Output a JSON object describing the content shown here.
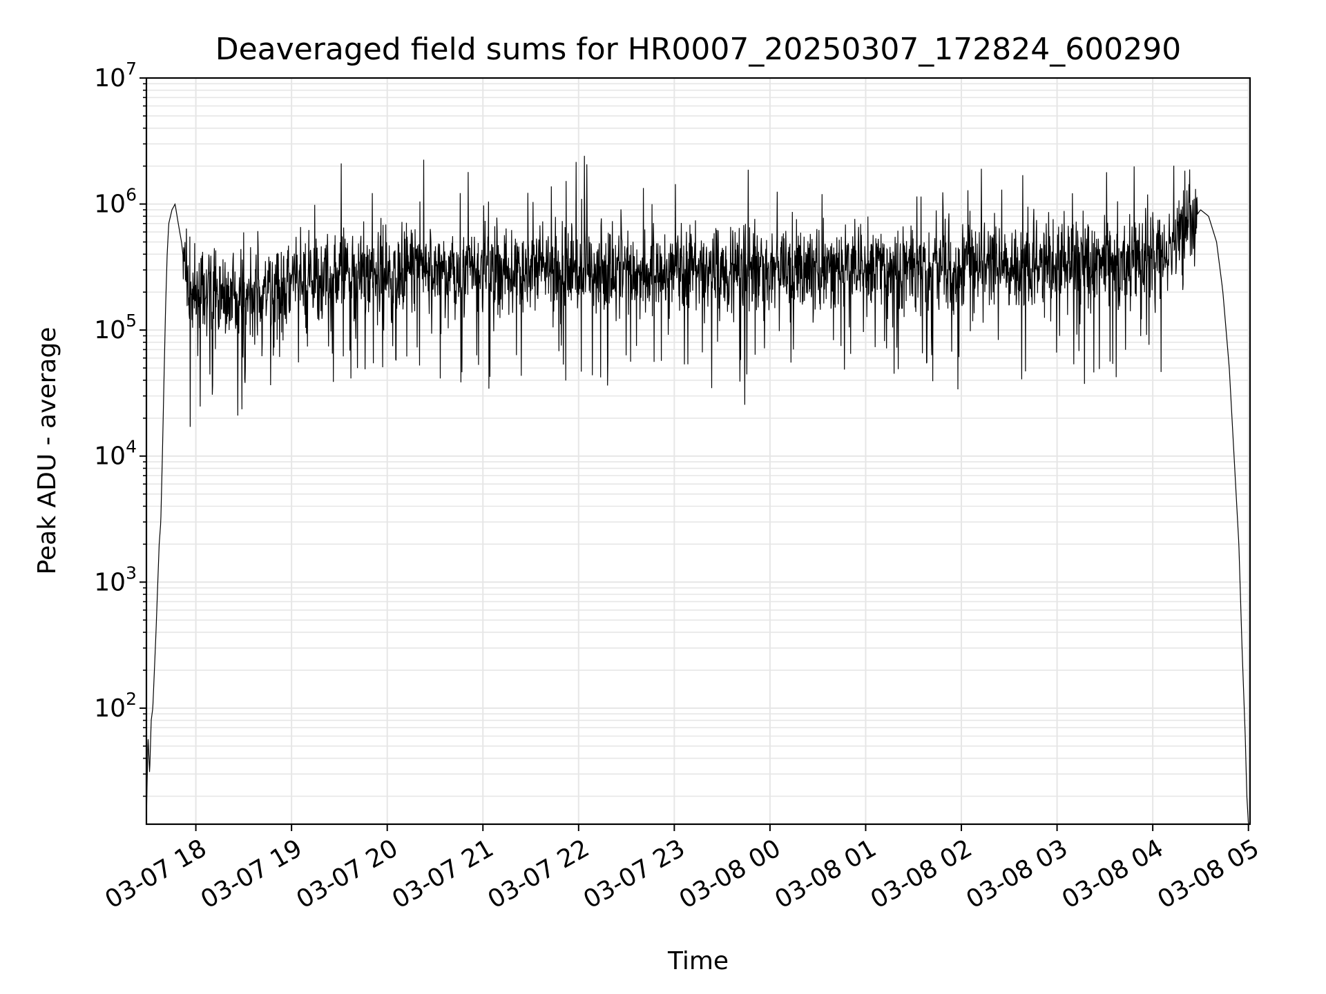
{
  "chart_data": {
    "type": "line",
    "title": "Deaveraged field sums for HR0007_20250307_172824_600290",
    "xlabel": "Time",
    "ylabel": "Peak ADU - average",
    "yscale": "log",
    "ylim": [
      12,
      10000000
    ],
    "xlim": [
      "2025-03-07 17:29",
      "2025-03-08 05:01"
    ],
    "grid": true,
    "line_color": "#000000",
    "grid_color": "#e6e6e6",
    "x_ticks": [
      {
        "value": "2025-03-07 18:00",
        "label": "03-07 18"
      },
      {
        "value": "2025-03-07 19:00",
        "label": "03-07 19"
      },
      {
        "value": "2025-03-07 20:00",
        "label": "03-07 20"
      },
      {
        "value": "2025-03-07 21:00",
        "label": "03-07 21"
      },
      {
        "value": "2025-03-07 22:00",
        "label": "03-07 22"
      },
      {
        "value": "2025-03-07 23:00",
        "label": "03-07 23"
      },
      {
        "value": "2025-03-08 00:00",
        "label": "03-08 00"
      },
      {
        "value": "2025-03-08 01:00",
        "label": "03-08 01"
      },
      {
        "value": "2025-03-08 02:00",
        "label": "03-08 02"
      },
      {
        "value": "2025-03-08 03:00",
        "label": "03-08 03"
      },
      {
        "value": "2025-03-08 04:00",
        "label": "03-08 04"
      },
      {
        "value": "2025-03-08 05:00",
        "label": "03-08 05"
      }
    ],
    "y_ticks": [
      {
        "value": 100,
        "base": "10",
        "exp": "2"
      },
      {
        "value": 1000,
        "base": "10",
        "exp": "3"
      },
      {
        "value": 10000,
        "base": "10",
        "exp": "4"
      },
      {
        "value": 100000,
        "base": "10",
        "exp": "5"
      },
      {
        "value": 1000000,
        "base": "10",
        "exp": "6"
      },
      {
        "value": 10000000,
        "base": "10",
        "exp": "7"
      }
    ],
    "series": [
      {
        "x": [
          "2025-03-07 17:29",
          "2025-03-07 17:30",
          "2025-03-07 17:31",
          "2025-03-07 17:32",
          "2025-03-07 17:33",
          "2025-03-07 17:34",
          "2025-03-07 17:35",
          "2025-03-07 17:36",
          "2025-03-07 17:37",
          "2025-03-07 17:38",
          "2025-03-07 17:39",
          "2025-03-07 17:40",
          "2025-03-07 17:41",
          "2025-03-07 17:42",
          "2025-03-07 17:43",
          "2025-03-07 17:45",
          "2025-03-07 17:47",
          "2025-03-07 17:49",
          "2025-03-07 17:51",
          "2025-03-07 17:53",
          "2025-03-07 17:55",
          "2025-03-07 17:58",
          "2025-03-07 18:01",
          "2025-03-07 18:05",
          "2025-03-07 18:10",
          "2025-03-07 18:14",
          "2025-03-07 18:20",
          "2025-03-07 18:30",
          "2025-03-07 18:40",
          "2025-03-07 18:50",
          "2025-03-07 19:00",
          "2025-03-07 19:10",
          "2025-03-07 19:20",
          "2025-03-07 19:30",
          "2025-03-07 19:45",
          "2025-03-07 20:00",
          "2025-03-07 20:15",
          "2025-03-07 20:30",
          "2025-03-07 20:35",
          "2025-03-07 20:45",
          "2025-03-07 21:00",
          "2025-03-07 21:20",
          "2025-03-07 21:40",
          "2025-03-07 22:00",
          "2025-03-07 22:15",
          "2025-03-07 22:30",
          "2025-03-07 22:45",
          "2025-03-07 23:00",
          "2025-03-07 23:15",
          "2025-03-07 23:30",
          "2025-03-07 23:45",
          "2025-03-08 00:00",
          "2025-03-08 00:20",
          "2025-03-08 00:40",
          "2025-03-08 01:00",
          "2025-03-08 01:20",
          "2025-03-08 01:40",
          "2025-03-08 02:00",
          "2025-03-08 02:20",
          "2025-03-08 02:40",
          "2025-03-08 03:00",
          "2025-03-08 03:20",
          "2025-03-08 03:40",
          "2025-03-08 04:00",
          "2025-03-08 04:10",
          "2025-03-08 04:20",
          "2025-03-08 04:30",
          "2025-03-08 04:35",
          "2025-03-08 04:40",
          "2025-03-08 04:44",
          "2025-03-08 04:48",
          "2025-03-08 04:51",
          "2025-03-08 04:54",
          "2025-03-08 04:56",
          "2025-03-08 04:58",
          "2025-03-08 04:59",
          "2025-03-08 05:00"
        ],
        "values": [
          13,
          60,
          30,
          80,
          100,
          200,
          400,
          900,
          2000,
          3000,
          10000,
          40000,
          150000,
          400000,
          700000,
          900000,
          1000000,
          700000,
          500000,
          300000,
          200000,
          180000,
          200000,
          170000,
          190000,
          200000,
          180000,
          200000,
          190000,
          210000,
          230000,
          250000,
          260000,
          270000,
          280000,
          280000,
          300000,
          310000,
          300000,
          290000,
          300000,
          300000,
          290000,
          300000,
          310000,
          290000,
          300000,
          300000,
          310000,
          300000,
          320000,
          300000,
          310000,
          300000,
          320000,
          310000,
          330000,
          320000,
          340000,
          330000,
          340000,
          350000,
          350000,
          360000,
          400000,
          600000,
          900000,
          800000,
          500000,
          200000,
          50000,
          10000,
          2000,
          300,
          60,
          20,
          12
        ]
      }
    ]
  }
}
